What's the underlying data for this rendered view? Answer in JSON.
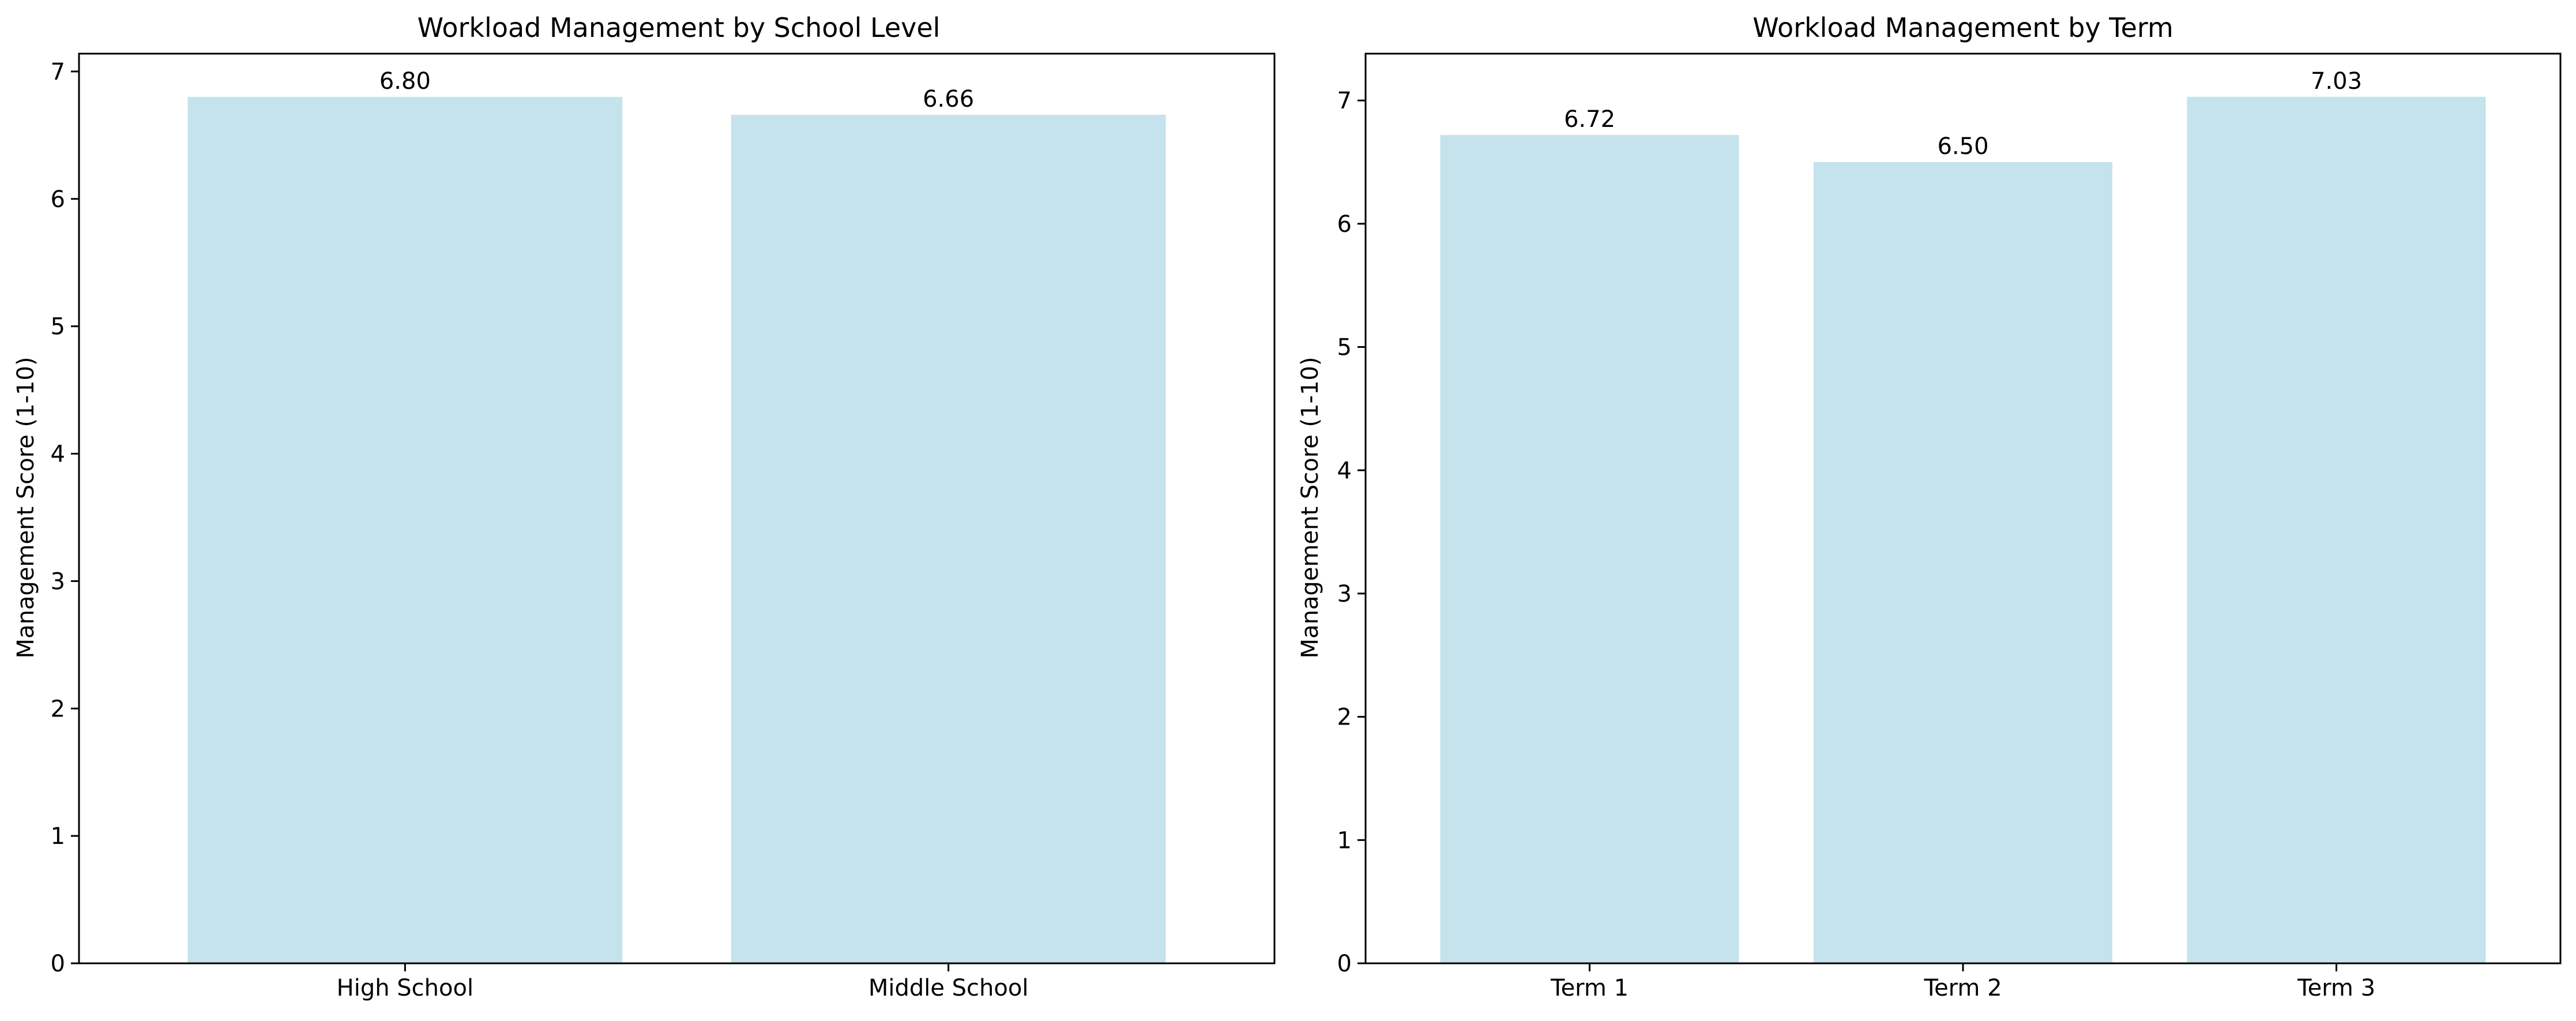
{
  "chart_data": [
    {
      "type": "bar",
      "title": "Workload Management by School Level",
      "xlabel": "",
      "ylabel": "Management Score (1-10)",
      "categories": [
        "High School",
        "Middle School"
      ],
      "values": [
        6.8,
        6.66
      ],
      "value_labels": [
        "6.80",
        "6.66"
      ],
      "y_ticks": [
        "0",
        "1",
        "2",
        "3",
        "4",
        "5",
        "6",
        "7"
      ],
      "ylim": [
        0,
        7.14
      ],
      "grid": false,
      "bar_color": "#c5e3ec"
    },
    {
      "type": "bar",
      "title": "Workload Management by Term",
      "xlabel": "",
      "ylabel": "Management Score (1-10)",
      "categories": [
        "Term 1",
        "Term 2",
        "Term 3"
      ],
      "values": [
        6.72,
        6.5,
        7.03
      ],
      "value_labels": [
        "6.72",
        "6.50",
        "7.03"
      ],
      "y_ticks": [
        "0",
        "1",
        "2",
        "3",
        "4",
        "5",
        "6",
        "7"
      ],
      "ylim": [
        0,
        7.38
      ],
      "grid": false,
      "bar_color": "#c5e3ec"
    }
  ]
}
